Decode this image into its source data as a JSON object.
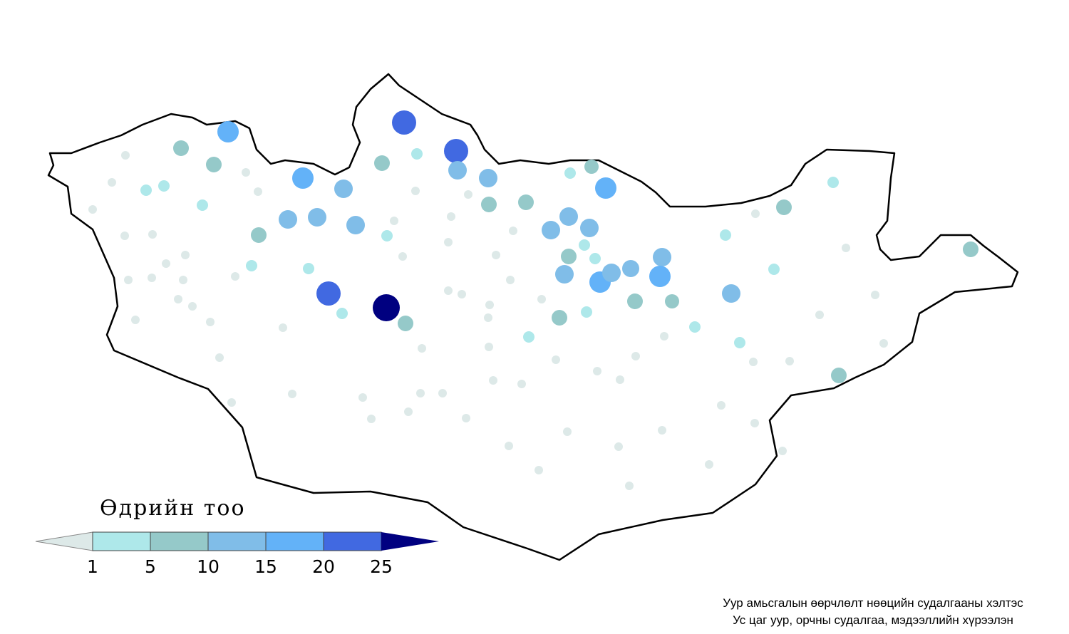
{
  "legend": {
    "title": "Өдрийн тоо",
    "ticks": [
      1,
      5,
      10,
      15,
      20,
      25
    ],
    "colors": [
      "#dde9e8",
      "#aee8ea",
      "#95c9c9",
      "#80bde8",
      "#63b2f8",
      "#4169e1",
      "#000080"
    ]
  },
  "credits": {
    "line1": "Уур амьсгалын өөрчлөлт нөөцийн судалгааны хэлтэс",
    "line2": "Ус цаг уур, орчны судалгаа, мэдээллийн хүрээлэн"
  }
}
